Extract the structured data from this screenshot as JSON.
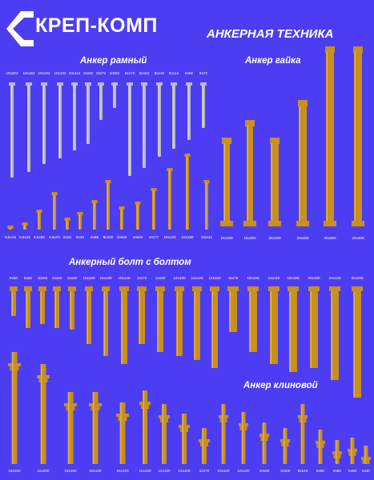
{
  "brand": {
    "name": "КРЕП-КОМП"
  },
  "headings": {
    "main": "АНКЕРНАЯ ТЕХНИКА",
    "frame_anchor": "Анкер рамный",
    "nut_anchor": "Анкер гайка",
    "bolt_anchor": "Анкерный болт с болтом",
    "wedge_anchor": "Анкер клиновой"
  },
  "colors": {
    "background": "#4d3df2",
    "text": "#ffffff",
    "brass": "#c8901c",
    "steel": "#b9bcc4"
  },
  "groups": {
    "frame_top": [
      "10x202",
      "10x182",
      "10x152",
      "10x132",
      "10x112",
      "10x92",
      "10x72",
      "10x52",
      "8x172",
      "8x152",
      "8x132",
      "8x112",
      "8x92",
      "8x72"
    ],
    "frame_bottom": [
      "6,5x18",
      "6,5x25",
      "6,5x56",
      "6,5x76",
      "8x25",
      "8x40",
      "8x65",
      "8x100",
      "10x50",
      "10x60",
      "10x77",
      "10x125",
      "10x150",
      "16x111"
    ],
    "nut": [
      "16x180",
      "16x250",
      "20x180",
      "20x250",
      "20x350",
      "20x400"
    ],
    "bolt": [
      "8x60",
      "8x80",
      "10x50",
      "10x60",
      "10x80",
      "10x100",
      "10x130",
      "10x140",
      "12x70",
      "12x80",
      "12x100",
      "12x120",
      "12x150",
      "16x75",
      "16x100",
      "16x110",
      "16x150",
      "20x100",
      "20x130",
      "20x200"
    ],
    "wedge": [
      "16x220",
      "16x200",
      "16x160",
      "16x140",
      "16x120",
      "12x150",
      "12x120",
      "12x100",
      "12x70",
      "10x120",
      "10x100",
      "10x80",
      "10x65",
      "8x120",
      "8x80",
      "8x50",
      "6x55",
      "6x40"
    ]
  }
}
